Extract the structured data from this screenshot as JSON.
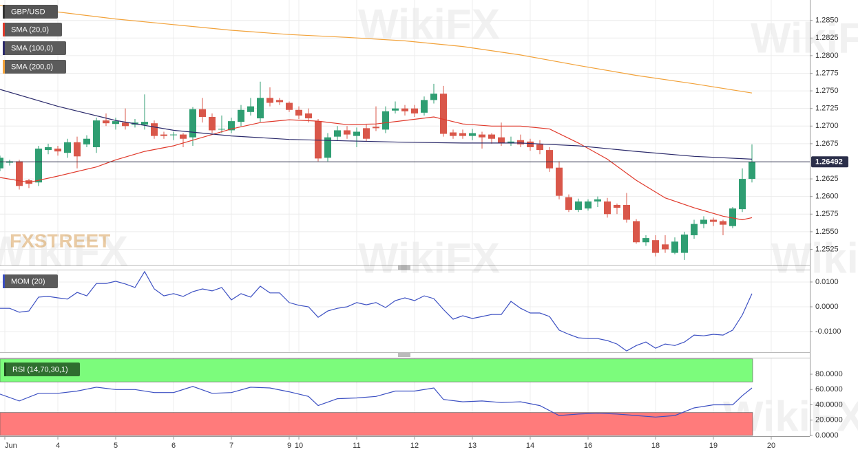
{
  "chart_data": [
    {
      "type": "candlestick",
      "name": "GBP/USD",
      "up_color": "#2f9e72",
      "down_color": "#d9574a",
      "x": [
        0,
        1,
        2,
        3,
        4,
        5,
        6,
        7,
        8,
        9,
        10,
        11,
        12,
        13,
        14,
        15,
        16,
        17,
        18,
        19,
        20,
        21,
        22,
        23,
        24,
        25,
        26,
        27,
        28,
        29,
        30,
        31,
        32,
        33,
        34,
        35,
        36,
        37,
        38,
        39,
        40,
        41,
        42,
        43,
        44,
        45,
        46,
        47,
        48,
        49,
        50,
        51,
        52,
        53,
        54,
        55,
        56,
        57,
        58,
        59,
        60,
        61,
        62,
        63,
        64,
        65,
        66,
        67,
        68,
        69,
        70,
        71,
        72,
        73,
        74,
        75,
        76,
        77,
        78
      ],
      "open": [
        1.264,
        1.2648,
        1.265,
        1.2623,
        1.262,
        1.2666,
        1.2668,
        1.2662,
        1.2677,
        1.2674,
        1.267,
        1.2708,
        1.2703,
        1.2705,
        1.2702,
        1.2702,
        1.2704,
        1.2688,
        1.2687,
        1.2688,
        1.2684,
        1.2724,
        1.2713,
        1.2695,
        1.2694,
        1.2706,
        1.272,
        1.2711,
        1.274,
        1.2737,
        1.2733,
        1.2723,
        1.2718,
        1.2707,
        1.2655,
        1.2685,
        1.2694,
        1.2686,
        1.2697,
        1.2699,
        1.2695,
        1.2722,
        1.2725,
        1.2725,
        1.2719,
        1.2737,
        1.2746,
        1.2691,
        1.269,
        1.2686,
        1.2688,
        1.2688,
        1.2684,
        1.2676,
        1.268,
        1.2678,
        1.2674,
        1.2666,
        1.2641,
        1.2599,
        1.2581,
        1.2583,
        1.2593,
        1.2593,
        1.2588,
        1.2588,
        1.2565,
        1.2535,
        1.2538,
        1.2532,
        1.252,
        1.252,
        1.2545,
        1.2561,
        1.2567,
        1.2565,
        1.2558,
        1.2582,
        1.2625
      ],
      "high": [
        1.2658,
        1.2652,
        1.2652,
        1.2625,
        1.2672,
        1.2675,
        1.2672,
        1.2682,
        1.2685,
        1.2687,
        1.2712,
        1.2718,
        1.2712,
        1.2725,
        1.271,
        1.2745,
        1.2708,
        1.2692,
        1.2692,
        1.269,
        1.2727,
        1.274,
        1.2718,
        1.2715,
        1.2712,
        1.273,
        1.274,
        1.2763,
        1.2755,
        1.274,
        1.2735,
        1.2728,
        1.2725,
        1.271,
        1.269,
        1.27,
        1.27,
        1.2698,
        1.2702,
        1.2728,
        1.2728,
        1.2735,
        1.273,
        1.273,
        1.2742,
        1.276,
        1.2757,
        1.2695,
        1.2695,
        1.2696,
        1.2692,
        1.269,
        1.2705,
        1.2685,
        1.2688,
        1.2682,
        1.268,
        1.267,
        1.265,
        1.2603,
        1.2597,
        1.2596,
        1.26,
        1.2598,
        1.259,
        1.2605,
        1.2568,
        1.2545,
        1.2545,
        1.2545,
        1.2542,
        1.255,
        1.2567,
        1.2572,
        1.257,
        1.2567,
        1.2585,
        1.264,
        1.2674
      ],
      "low": [
        1.2636,
        1.2644,
        1.261,
        1.2612,
        1.2615,
        1.266,
        1.2658,
        1.2655,
        1.264,
        1.267,
        1.2662,
        1.27,
        1.2695,
        1.2695,
        1.2698,
        1.2695,
        1.2682,
        1.2682,
        1.268,
        1.267,
        1.2672,
        1.2705,
        1.269,
        1.269,
        1.269,
        1.27,
        1.2715,
        1.2706,
        1.2728,
        1.273,
        1.272,
        1.271,
        1.2705,
        1.265,
        1.265,
        1.268,
        1.2682,
        1.267,
        1.2678,
        1.2693,
        1.269,
        1.2718,
        1.2715,
        1.2713,
        1.2715,
        1.2732,
        1.2685,
        1.2682,
        1.2682,
        1.268,
        1.2668,
        1.2675,
        1.2672,
        1.2672,
        1.267,
        1.2665,
        1.266,
        1.2635,
        1.2596,
        1.2578,
        1.2578,
        1.258,
        1.2585,
        1.257,
        1.2575,
        1.2563,
        1.2533,
        1.253,
        1.2515,
        1.252,
        1.2518,
        1.251,
        1.254,
        1.2555,
        1.2558,
        1.2545,
        1.2555,
        1.2578,
        1.262
      ],
      "close": [
        1.2655,
        1.265,
        1.2615,
        1.2618,
        1.2668,
        1.267,
        1.2664,
        1.2677,
        1.2657,
        1.2682,
        1.2708,
        1.2704,
        1.2707,
        1.27,
        1.2705,
        1.2706,
        1.2686,
        1.2686,
        1.2688,
        1.2682,
        1.2724,
        1.2713,
        1.2694,
        1.2696,
        1.2707,
        1.2723,
        1.2728,
        1.274,
        1.2733,
        1.2734,
        1.2723,
        1.2715,
        1.2711,
        1.2654,
        1.2684,
        1.2694,
        1.2688,
        1.2692,
        1.2682,
        1.2697,
        1.2721,
        1.2725,
        1.2721,
        1.2718,
        1.2737,
        1.2746,
        1.2689,
        1.2686,
        1.2686,
        1.269,
        1.2684,
        1.2682,
        1.2676,
        1.2678,
        1.2674,
        1.267,
        1.2666,
        1.264,
        1.2601,
        1.2581,
        1.2593,
        1.2593,
        1.2596,
        1.2575,
        1.2584,
        1.2567,
        1.2535,
        1.2541,
        1.252,
        1.2525,
        1.2536,
        1.2546,
        1.2561,
        1.2567,
        1.2564,
        1.256,
        1.2583,
        1.2625,
        1.2649
      ],
      "series": [
        {
          "name": "SMA (20,0)",
          "color": "#e0392b",
          "x": [
            0,
            3,
            6,
            10,
            12,
            15,
            18,
            21,
            24,
            27,
            30,
            33,
            36,
            39,
            42,
            45,
            48,
            51,
            54,
            57,
            60,
            63,
            66,
            69,
            72,
            75,
            77,
            78
          ],
          "values": [
            1.2627,
            1.262,
            1.2629,
            1.2642,
            1.2652,
            1.2664,
            1.2672,
            1.2684,
            1.2696,
            1.2705,
            1.2709,
            1.2707,
            1.2702,
            1.2703,
            1.2708,
            1.2713,
            1.2703,
            1.27,
            1.27,
            1.2696,
            1.2676,
            1.2653,
            1.2623,
            1.2598,
            1.2584,
            1.2572,
            1.2567,
            1.257
          ]
        },
        {
          "name": "SMA (100,0)",
          "color": "#2b2a6b",
          "x": [
            0,
            6,
            12,
            18,
            24,
            30,
            36,
            42,
            48,
            54,
            60,
            66,
            72,
            78
          ],
          "values": [
            1.2752,
            1.2728,
            1.2708,
            1.2694,
            1.2686,
            1.2681,
            1.2679,
            1.2677,
            1.2676,
            1.2676,
            1.2672,
            1.2664,
            1.2657,
            1.2653
          ]
        },
        {
          "name": "SMA (200,0)",
          "color": "#f2a23a",
          "x": [
            0,
            6,
            12,
            18,
            24,
            30,
            36,
            42,
            48,
            54,
            60,
            66,
            72,
            78
          ],
          "values": [
            1.2871,
            1.2862,
            1.2852,
            1.2844,
            1.2836,
            1.283,
            1.2826,
            1.2821,
            1.2813,
            1.2801,
            1.2786,
            1.2772,
            1.276,
            1.2747
          ]
        }
      ],
      "last_price": 1.26492,
      "xlim": [
        0,
        84
      ],
      "ylim": [
        1.2503,
        1.2879
      ],
      "yticks": [
        {
          "value": 1.285,
          "label": "1.2850"
        },
        {
          "value": 1.2825,
          "label": "1.2825"
        },
        {
          "value": 1.28,
          "label": "1.2800"
        },
        {
          "value": 1.2775,
          "label": "1.2775"
        },
        {
          "value": 1.275,
          "label": "1.2750"
        },
        {
          "value": 1.2725,
          "label": "1.2725"
        },
        {
          "value": 1.27,
          "label": "1.2700"
        },
        {
          "value": 1.2675,
          "label": "1.2675"
        },
        {
          "value": 1.2625,
          "label": "1.2625"
        },
        {
          "value": 1.26,
          "label": "1.2600"
        },
        {
          "value": 1.2575,
          "label": "1.2575"
        },
        {
          "value": 1.255,
          "label": "1.2550"
        },
        {
          "value": 1.2525,
          "label": "1.2525"
        }
      ],
      "grid": true
    },
    {
      "type": "line",
      "series": [
        {
          "name": "MOM (20)",
          "color": "#3b4fc2",
          "x": [
            0,
            1,
            2,
            3,
            4,
            5,
            6,
            7,
            8,
            9,
            10,
            11,
            12,
            13,
            14,
            15,
            16,
            17,
            18,
            19,
            20,
            21,
            22,
            23,
            24,
            25,
            26,
            27,
            28,
            29,
            30,
            31,
            32,
            33,
            34,
            35,
            36,
            37,
            38,
            39,
            40,
            41,
            42,
            43,
            44,
            45,
            46,
            47,
            48,
            49,
            50,
            51,
            52,
            53,
            54,
            55,
            56,
            57,
            58,
            59,
            60,
            61,
            62,
            63,
            64,
            65,
            66,
            67,
            68,
            69,
            70,
            71,
            72,
            73,
            74,
            75,
            76,
            77,
            78
          ],
          "values": [
            -0.0006,
            -0.0006,
            -0.0022,
            -0.0017,
            0.0039,
            0.0042,
            0.0036,
            0.0031,
            0.0058,
            0.0044,
            0.0094,
            0.0094,
            0.0103,
            0.0092,
            0.0078,
            0.0142,
            0.0072,
            0.0044,
            0.0053,
            0.0042,
            0.0061,
            0.0072,
            0.0064,
            0.0078,
            0.0028,
            0.0053,
            0.0039,
            0.0083,
            0.0056,
            0.0056,
            0.0017,
            0.0006,
            0,
            -0.0042,
            -0.0017,
            -0.0006,
            0,
            0.0017,
            0.0008,
            0.0017,
            -0.0003,
            0.0025,
            0.0036,
            0.0025,
            0.0044,
            0.0033,
            -0.0011,
            -0.005,
            -0.0036,
            -0.0047,
            -0.0039,
            -0.0031,
            -0.0031,
            0.0022,
            -0.0006,
            -0.0025,
            -0.0025,
            -0.0039,
            -0.0094,
            -0.0111,
            -0.0125,
            -0.0128,
            -0.0128,
            -0.0136,
            -0.015,
            -0.0178,
            -0.0156,
            -0.0142,
            -0.0167,
            -0.015,
            -0.0156,
            -0.0142,
            -0.0114,
            -0.0117,
            -0.0111,
            -0.0114,
            -0.0094,
            -0.0033,
            0.0053
          ]
        }
      ],
      "xlim": [
        0,
        84
      ],
      "ylim": [
        -0.0183,
        0.0147
      ],
      "yticks": [
        {
          "value": 0.01,
          "label": "0.0100"
        },
        {
          "value": 0,
          "label": "0.0000"
        },
        {
          "value": -0.01,
          "label": "-0.0100"
        }
      ],
      "grid": true
    },
    {
      "type": "line",
      "series": [
        {
          "name": "RSI (14,70,30,1)",
          "color": "#3b4fc2",
          "x": [
            0,
            2,
            4,
            6,
            8,
            10,
            12,
            14,
            16,
            18,
            20,
            22,
            24,
            26,
            28,
            30,
            32,
            33,
            35,
            37,
            39,
            41,
            43,
            45,
            46,
            48,
            50,
            52,
            54,
            56,
            58,
            60,
            62,
            64,
            66,
            68,
            70,
            72,
            74,
            76,
            77,
            78
          ],
          "values": [
            54,
            45,
            55,
            55,
            58,
            63,
            60,
            60,
            56,
            56,
            64,
            55,
            56,
            63,
            62,
            57,
            51,
            39,
            48,
            49,
            51,
            58,
            58,
            62,
            47,
            44,
            45,
            43,
            44,
            39,
            26,
            28,
            29,
            28,
            26,
            24,
            26,
            36,
            40,
            40,
            52,
            62
          ]
        }
      ],
      "bands": [
        {
          "from": 70,
          "to": 100,
          "color": "#7cfc7c"
        },
        {
          "from": 0,
          "to": 30,
          "color": "#ff7b7b"
        }
      ],
      "xlim": [
        0,
        84
      ],
      "ylim": [
        -0.9,
        100.7
      ],
      "yticks": [
        {
          "value": 80,
          "label": "80.0000"
        },
        {
          "value": 60,
          "label": "60.0000"
        },
        {
          "value": 40,
          "label": "40.0000"
        },
        {
          "value": 20,
          "label": "20.0000"
        },
        {
          "value": 0,
          "label": "0.0000"
        }
      ],
      "xticks": [
        {
          "value": 0.5,
          "label": "Jun"
        },
        {
          "value": 6,
          "label": "4"
        },
        {
          "value": 12,
          "label": "5"
        },
        {
          "value": 18,
          "label": "6"
        },
        {
          "value": 24,
          "label": "7"
        },
        {
          "value": 30,
          "label": "9"
        },
        {
          "value": 31,
          "label": "10"
        },
        {
          "value": 37,
          "label": "11"
        },
        {
          "value": 43,
          "label": "12"
        },
        {
          "value": 49,
          "label": "13"
        },
        {
          "value": 55,
          "label": "14"
        },
        {
          "value": 61,
          "label": "16"
        },
        {
          "value": 68,
          "label": "18"
        },
        {
          "value": 74,
          "label": "19"
        },
        {
          "value": 80,
          "label": "20"
        }
      ],
      "grid": true
    }
  ],
  "watermark": "WikiFX",
  "brand": "FXSTREET"
}
